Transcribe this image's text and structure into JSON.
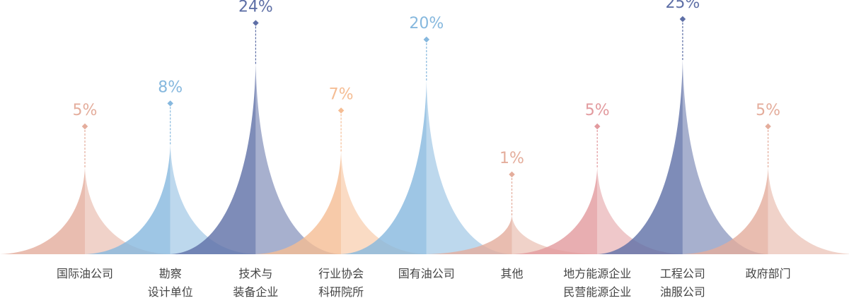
{
  "chart_data": {
    "type": "peak",
    "categories": [
      [
        "国际油公司"
      ],
      [
        "勘察",
        "设计单位"
      ],
      [
        "技术与",
        "装备企业"
      ],
      [
        "行业协会",
        "科研院所"
      ],
      [
        "国有油公司"
      ],
      [
        "其他"
      ],
      [
        "地方能源企业",
        "民营能源企业"
      ],
      [
        "工程公司",
        "油服公司"
      ],
      [
        "政府部门"
      ]
    ],
    "values": [
      5,
      8,
      24,
      7,
      20,
      1,
      5,
      25,
      5
    ],
    "value_labels": [
      "5%",
      "8%",
      "24%",
      "7%",
      "20%",
      "1%",
      "5%",
      "25%",
      "5%"
    ],
    "colors": [
      "#e4ad9c",
      "#86b8de",
      "#5e6fa6",
      "#f5bd94",
      "#86b8de",
      "#e4ad9c",
      "#e29a9e",
      "#5e6fa6",
      "#e4ad9c"
    ]
  }
}
